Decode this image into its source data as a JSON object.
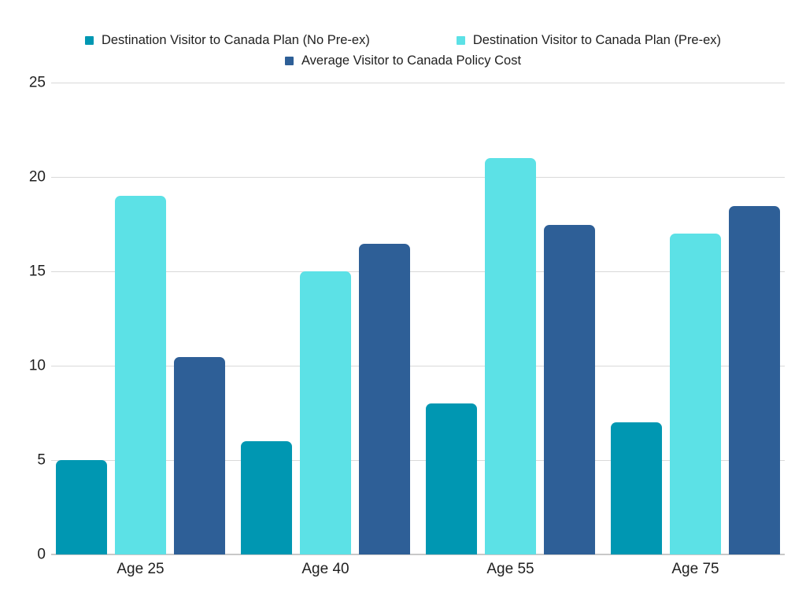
{
  "chart": {
    "background_color": "#ffffff",
    "text_color": "#1f1f1f",
    "gridline_color": "#d9d9d9",
    "axis_line_color": "#c8c8c8"
  },
  "legend": {
    "items": [
      {
        "label": "Destination Visitor to Canada Plan (No Pre-ex)",
        "color": "#0097b2",
        "icon": "square-swatch-icon"
      },
      {
        "label": "Destination Visitor to Canada Plan (Pre-ex)",
        "color": "#5ce1e6",
        "icon": "square-swatch-icon"
      },
      {
        "label": "Average Visitor to Canada Policy Cost",
        "color": "#2e5f97",
        "icon": "square-swatch-icon"
      }
    ]
  },
  "chart_data": {
    "type": "bar",
    "title": "",
    "xlabel": "",
    "ylabel": "",
    "categories": [
      "Age 25",
      "Age 40",
      "Age 55",
      "Age 75"
    ],
    "series": [
      {
        "name": "Destination Visitor to Canada Plan (No Pre-ex)",
        "color": "#0097b2",
        "values": [
          5,
          6,
          8,
          7
        ]
      },
      {
        "name": "Destination Visitor to Canada Plan (Pre-ex)",
        "color": "#5ce1e6",
        "values": [
          19,
          15,
          21,
          17
        ]
      },
      {
        "name": "Average Visitor to Canada Policy Cost",
        "color": "#2e5f97",
        "values": [
          10.45,
          16.45,
          17.45,
          18.45
        ]
      }
    ],
    "ylim": [
      0,
      25
    ],
    "yticks": [
      0,
      5,
      10,
      15,
      20,
      25
    ],
    "grid": true,
    "legend_position": "top-center"
  }
}
